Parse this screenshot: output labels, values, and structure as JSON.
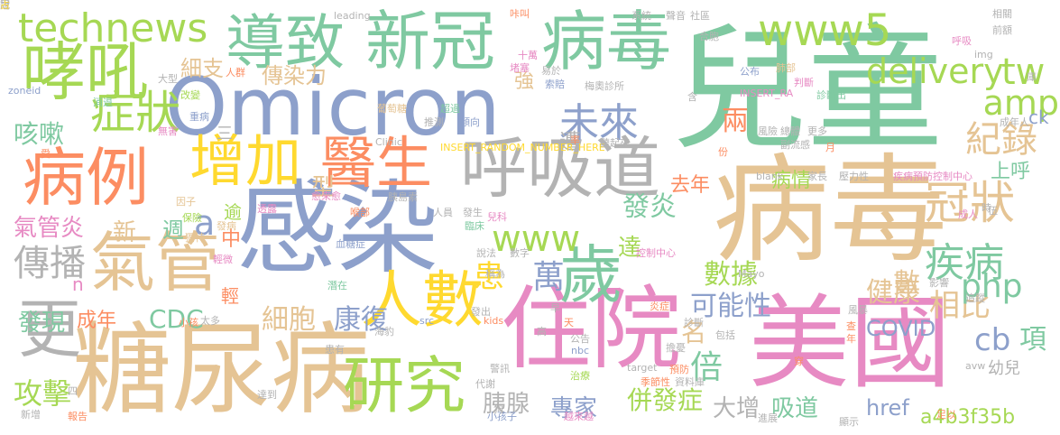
{
  "colors": {
    "background": "#ffffff",
    "green": "#7fc9a1",
    "lime": "#a6d854",
    "blue": "#8da0cb",
    "orange": "#fc8d62",
    "pink": "#e78ac3",
    "tan": "#e5c494",
    "yellow": "#ffd92f",
    "gray": "#b3b3b3"
  },
  "words": [
    {
      "text": "兒童",
      "color": "green"
    },
    {
      "text": "Omicron",
      "color": "blue"
    },
    {
      "text": "感染",
      "color": "blue"
    },
    {
      "text": "病毒",
      "color": "tan"
    },
    {
      "text": "美國",
      "color": "pink"
    },
    {
      "text": "住院",
      "color": "pink"
    },
    {
      "text": "糖尿病",
      "color": "tan"
    },
    {
      "text": "病毒",
      "color": "green"
    },
    {
      "text": "新冠",
      "color": "green"
    },
    {
      "text": "導致",
      "color": "green"
    },
    {
      "text": "哮吼",
      "color": "lime"
    },
    {
      "text": "呼吸道",
      "color": "gray"
    },
    {
      "text": "病例",
      "color": "orange"
    },
    {
      "text": "氣管",
      "color": "tan"
    },
    {
      "text": "增加",
      "color": "yellow"
    },
    {
      "text": "醫生",
      "color": "orange"
    },
    {
      "text": "人數",
      "color": "yellow"
    },
    {
      "text": "歲",
      "color": "green"
    },
    {
      "text": "研究",
      "color": "lime"
    },
    {
      "text": "更",
      "color": "gray"
    },
    {
      "text": "technews",
      "color": "lime"
    },
    {
      "text": "未來",
      "color": "blue"
    },
    {
      "text": "www5",
      "color": "lime"
    },
    {
      "text": "症狀",
      "color": "lime"
    },
    {
      "text": "冠狀",
      "color": "tan"
    },
    {
      "text": "疾病",
      "color": "green"
    },
    {
      "text": "tw",
      "color": "lime"
    },
    {
      "text": "delivery",
      "color": "lime"
    },
    {
      "text": "amp",
      "color": "lime"
    },
    {
      "text": "紀錄",
      "color": "tan"
    },
    {
      "text": "www",
      "color": "lime"
    },
    {
      "text": "a",
      "color": "blue"
    },
    {
      "text": "傳播",
      "color": "gray"
    },
    {
      "text": "氣管炎",
      "color": "pink"
    },
    {
      "text": "咳嗽",
      "color": "green"
    },
    {
      "text": "CDC",
      "color": "green"
    },
    {
      "text": "數據",
      "color": "lime"
    },
    {
      "text": "萬",
      "color": "blue"
    },
    {
      "text": "發炎",
      "color": "green"
    },
    {
      "text": "患",
      "color": "yellow"
    },
    {
      "text": "可能性",
      "color": "blue"
    },
    {
      "text": "健康",
      "color": "tan"
    },
    {
      "text": "相比",
      "color": "tan"
    },
    {
      "text": "細胞",
      "color": "tan"
    },
    {
      "text": "康復",
      "color": "blue"
    },
    {
      "text": "名",
      "color": "tan"
    },
    {
      "text": "倍",
      "color": "green"
    },
    {
      "text": "php",
      "color": "green"
    },
    {
      "text": "cb",
      "color": "blue"
    },
    {
      "text": "項",
      "color": "green"
    },
    {
      "text": "攻擊",
      "color": "lime"
    },
    {
      "text": "研究",
      "color": "lime"
    },
    {
      "text": "胰腺",
      "color": "gray"
    },
    {
      "text": "專家",
      "color": "blue"
    },
    {
      "text": "併發症",
      "color": "lime"
    },
    {
      "text": "大增",
      "color": "gray"
    },
    {
      "text": "吸道",
      "color": "green"
    },
    {
      "text": "href",
      "color": "blue"
    },
    {
      "text": "a4b3f35b",
      "color": "lime"
    },
    {
      "text": "COVID",
      "color": "blue"
    },
    {
      "text": "發現",
      "color": "green"
    },
    {
      "text": "成年",
      "color": "orange"
    },
    {
      "text": "傳染力",
      "color": "tan"
    },
    {
      "text": "細支",
      "color": "tan"
    },
    {
      "text": "兩",
      "color": "orange"
    },
    {
      "text": "數",
      "color": "tan"
    },
    {
      "text": "型",
      "color": "tan"
    },
    {
      "text": "遭",
      "color": "gray"
    },
    {
      "text": "去年",
      "color": "orange"
    },
    {
      "text": "病情",
      "color": "lime"
    },
    {
      "text": "上呼",
      "color": "green"
    },
    {
      "text": "新",
      "color": "tan"
    },
    {
      "text": "達",
      "color": "lime"
    },
    {
      "text": "週",
      "color": "green"
    },
    {
      "text": "中",
      "color": "orange"
    },
    {
      "text": "逾",
      "color": "lime"
    },
    {
      "text": "ck",
      "color": "blue"
    },
    {
      "text": "幼兒",
      "color": "gray"
    },
    {
      "text": "n",
      "color": "pink"
    },
    {
      "text": "輕",
      "color": "orange"
    },
    {
      "text": "強",
      "color": "tan"
    },
    {
      "text": "三",
      "color": "gray"
    },
    {
      "text": "leading",
      "color": "gray"
    },
    {
      "text": "系統",
      "color": "gray"
    },
    {
      "text": "社區",
      "color": "gray"
    },
    {
      "text": "相關",
      "color": "gray"
    },
    {
      "text": "前額",
      "color": "gray"
    },
    {
      "text": "呼吸",
      "color": "pink"
    },
    {
      "text": "img",
      "color": "gray"
    },
    {
      "text": "zoneid",
      "color": "blue"
    },
    {
      "text": "INSERT_RANDOM_NUMBER_HERE",
      "color": "yellow"
    },
    {
      "text": "INSERT_RA",
      "color": "pink"
    },
    {
      "text": "Clinic",
      "color": "gray"
    },
    {
      "text": "Mayo",
      "color": "gray"
    },
    {
      "text": "blank",
      "color": "gray"
    },
    {
      "text": "疾病預防控制中心",
      "color": "pink"
    },
    {
      "text": "控制中心",
      "color": "pink"
    },
    {
      "text": "梅奧診所",
      "color": "gray"
    },
    {
      "text": "聽起來",
      "color": "gray"
    },
    {
      "text": "傾向",
      "color": "blue"
    },
    {
      "text": "超過",
      "color": "green"
    },
    {
      "text": "推測",
      "color": "gray"
    },
    {
      "text": "葡萄糖",
      "color": "tan"
    },
    {
      "text": "索賠",
      "color": "blue"
    },
    {
      "text": "易於",
      "color": "gray"
    },
    {
      "text": "十萬",
      "color": "pink"
    },
    {
      "text": "堵塞",
      "color": "pink"
    },
    {
      "text": "咔叫",
      "color": "orange"
    },
    {
      "text": "聲音",
      "color": "gray"
    },
    {
      "text": "合胞",
      "color": "gray"
    },
    {
      "text": "公布",
      "color": "blue"
    },
    {
      "text": "肺部",
      "color": "tan"
    },
    {
      "text": "判斷",
      "color": "pink"
    },
    {
      "text": "診斷出",
      "color": "green"
    },
    {
      "text": "成年人",
      "color": "gray"
    },
    {
      "text": "風險",
      "color": "gray"
    },
    {
      "text": "總體",
      "color": "gray"
    },
    {
      "text": "副流感",
      "color": "gray"
    },
    {
      "text": "更多",
      "color": "gray"
    },
    {
      "text": "壓力性",
      "color": "gray"
    },
    {
      "text": "家長",
      "color": "gray"
    },
    {
      "text": "大型",
      "color": "gray"
    },
    {
      "text": "人群",
      "color": "orange"
    },
    {
      "text": "消退",
      "color": "green"
    },
    {
      "text": "改變",
      "color": "lime"
    },
    {
      "text": "重病",
      "color": "blue"
    },
    {
      "text": "無害",
      "color": "pink"
    },
    {
      "text": "因子",
      "color": "tan"
    },
    {
      "text": "保險",
      "color": "lime"
    },
    {
      "text": "發病",
      "color": "tan"
    },
    {
      "text": "獨特",
      "color": "tan"
    },
    {
      "text": "愈來愈",
      "color": "pink"
    },
    {
      "text": "透露",
      "color": "pink"
    },
    {
      "text": "胰島素",
      "color": "gray"
    },
    {
      "text": "喉部",
      "color": "orange"
    },
    {
      "text": "人員",
      "color": "gray"
    },
    {
      "text": "發生",
      "color": "gray"
    },
    {
      "text": "臨床",
      "color": "green"
    },
    {
      "text": "兒科",
      "color": "pink"
    },
    {
      "text": "血糖症",
      "color": "blue"
    },
    {
      "text": "輕微",
      "color": "pink"
    },
    {
      "text": "潛在",
      "color": "green"
    },
    {
      "text": "說法",
      "color": "gray"
    },
    {
      "text": "數字",
      "color": "gray"
    },
    {
      "text": "稱為",
      "color": "gray"
    },
    {
      "text": "發出",
      "color": "gray"
    },
    {
      "text": "kids",
      "color": "orange"
    },
    {
      "text": "公告",
      "color": "gray"
    },
    {
      "text": "nbc",
      "color": "blue"
    },
    {
      "text": "炎症",
      "color": "orange"
    },
    {
      "text": "擔憂",
      "color": "gray"
    },
    {
      "text": "影響",
      "color": "gray"
    },
    {
      "text": "追蹤",
      "color": "gray"
    },
    {
      "text": "風暴",
      "color": "gray"
    },
    {
      "text": "包括",
      "color": "gray"
    },
    {
      "text": "診斷",
      "color": "gray"
    },
    {
      "text": "太多",
      "color": "gray"
    },
    {
      "text": "src",
      "color": "blue"
    },
    {
      "text": "患有",
      "color": "gray"
    },
    {
      "text": "警訊",
      "color": "gray"
    },
    {
      "text": "代謝",
      "color": "gray"
    },
    {
      "text": "資料庫",
      "color": "gray"
    },
    {
      "text": "治療",
      "color": "lime"
    },
    {
      "text": "季節性",
      "color": "orange"
    },
    {
      "text": "預防",
      "color": "orange"
    },
    {
      "text": "target",
      "color": "gray"
    },
    {
      "text": "avw",
      "color": "gray"
    },
    {
      "text": "新增",
      "color": "gray"
    },
    {
      "text": "報告",
      "color": "orange"
    },
    {
      "text": "小孩子",
      "color": "blue"
    },
    {
      "text": "越來越",
      "color": "pink"
    },
    {
      "text": "進展",
      "color": "gray"
    },
    {
      "text": "顯示",
      "color": "gray"
    },
    {
      "text": "足以",
      "color": "orange"
    },
    {
      "text": "達到",
      "color": "gray"
    },
    {
      "text": "成人",
      "color": "pink"
    },
    {
      "text": "小孩",
      "color": "orange"
    },
    {
      "text": "海豹",
      "color": "gray"
    },
    {
      "text": "高",
      "color": "gray"
    },
    {
      "text": "天",
      "color": "orange"
    },
    {
      "text": "年",
      "color": "orange"
    },
    {
      "text": "查",
      "color": "orange"
    },
    {
      "text": "早",
      "color": "gray"
    },
    {
      "text": "四",
      "color": "gray"
    },
    {
      "text": "愛",
      "color": "orange"
    },
    {
      "text": "率",
      "color": "orange"
    },
    {
      "text": "份",
      "color": "orange"
    },
    {
      "text": "狗",
      "color": "gray"
    },
    {
      "text": "穿",
      "color": "orange"
    },
    {
      "text": "含",
      "color": "gray"
    },
    {
      "text": "庫",
      "color": "gray"
    },
    {
      "text": "伍",
      "color": "gray"
    },
    {
      "text": "時",
      "color": "gray"
    },
    {
      "text": "月",
      "color": "orange"
    },
    {
      "text": "冠",
      "color": "gray"
    },
    {
      "text": "說",
      "color": "gray"
    },
    {
      "text": "占",
      "color": "yellow"
    }
  ]
}
